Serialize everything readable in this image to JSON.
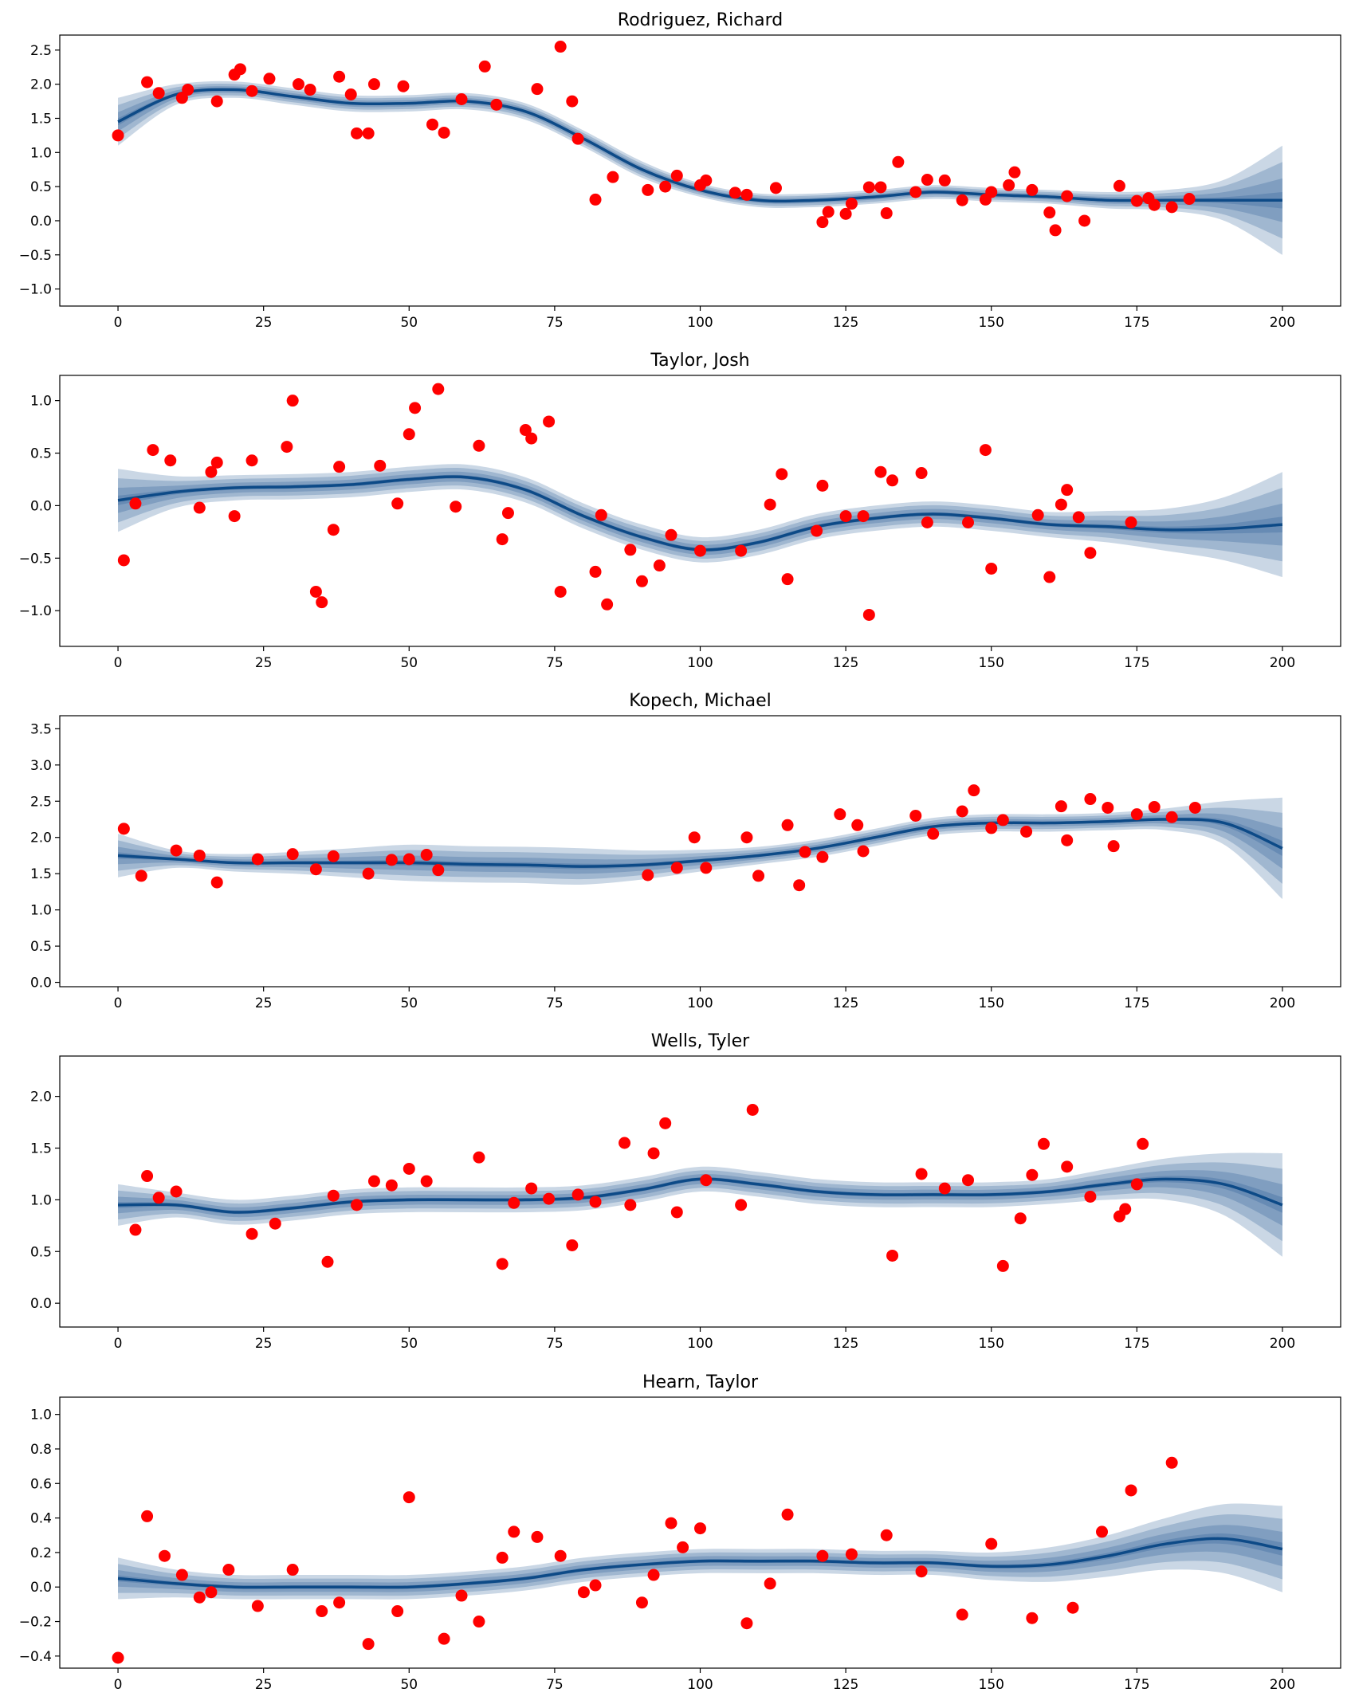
{
  "chart_data": [
    {
      "type": "line",
      "title": "Rodriguez, Richard",
      "xlim": [
        -10,
        210
      ],
      "ylim": [
        -1.25,
        2.72
      ],
      "xticks": [
        0,
        25,
        50,
        75,
        100,
        125,
        150,
        175,
        200
      ],
      "yticks": [
        {
          "value": -1,
          "label": "−1.0"
        },
        {
          "value": -0.5,
          "label": "−0.5"
        },
        {
          "value": 0,
          "label": "0.0"
        },
        0.5,
        {
          "value": 1,
          "label": "1.0"
        },
        1.5,
        {
          "value": 2,
          "label": "2.0"
        },
        2.5
      ],
      "x": [
        0,
        10,
        20,
        30,
        40,
        50,
        60,
        70,
        80,
        90,
        100,
        110,
        120,
        130,
        140,
        150,
        160,
        170,
        180,
        190,
        200
      ],
      "mean": {
        "color": "#0d4a87",
        "values": [
          1.45,
          1.85,
          1.92,
          1.82,
          1.72,
          1.72,
          1.75,
          1.6,
          1.2,
          0.75,
          0.45,
          0.3,
          0.3,
          0.35,
          0.42,
          0.38,
          0.35,
          0.3,
          0.3,
          0.3,
          0.3
        ]
      },
      "spread": [
        0.35,
        0.15,
        0.12,
        0.12,
        0.12,
        0.12,
        0.12,
        0.12,
        0.12,
        0.12,
        0.1,
        0.1,
        0.1,
        0.1,
        0.1,
        0.1,
        0.1,
        0.12,
        0.15,
        0.3,
        0.8
      ],
      "points": {
        "color": "#ff0000",
        "x": [
          0,
          5,
          7,
          11,
          12,
          17,
          20,
          21,
          23,
          26,
          31,
          33,
          38,
          40,
          41,
          43,
          44,
          49,
          54,
          56,
          59,
          63,
          65,
          72,
          76,
          78,
          79,
          82,
          85,
          91,
          94,
          96,
          100,
          101,
          106,
          108,
          113,
          121,
          122,
          125,
          126,
          129,
          131,
          132,
          134,
          137,
          139,
          142,
          145,
          149,
          150,
          153,
          154,
          157,
          160,
          161,
          163,
          166,
          172,
          175,
          177,
          178,
          181,
          184
        ],
        "y": [
          1.25,
          2.03,
          1.87,
          1.8,
          1.92,
          1.75,
          2.14,
          2.22,
          1.9,
          2.08,
          2.0,
          1.92,
          2.11,
          1.85,
          1.28,
          1.28,
          2.0,
          1.97,
          1.41,
          1.29,
          1.78,
          2.26,
          1.7,
          1.93,
          2.55,
          1.75,
          1.2,
          0.31,
          0.64,
          0.45,
          0.5,
          0.66,
          0.52,
          0.59,
          0.41,
          0.38,
          0.48,
          -0.02,
          0.13,
          0.1,
          0.25,
          0.49,
          0.49,
          0.11,
          0.86,
          0.42,
          0.6,
          0.59,
          0.3,
          0.31,
          0.42,
          0.52,
          0.71,
          0.45,
          0.12,
          -0.14,
          0.36,
          0.0,
          0.51,
          0.29,
          0.33,
          0.23,
          0.2,
          0.32
        ]
      }
    },
    {
      "type": "line",
      "title": "Taylor, Josh",
      "xlim": [
        -10,
        210
      ],
      "ylim": [
        -1.34,
        1.24
      ],
      "xticks": [
        0,
        25,
        50,
        75,
        100,
        125,
        150,
        175,
        200
      ],
      "yticks": [
        {
          "value": -1,
          "label": "−1.0"
        },
        {
          "value": -0.5,
          "label": "−0.5"
        },
        {
          "value": 0,
          "label": "0.0"
        },
        0.5,
        {
          "value": 1,
          "label": "1.0"
        }
      ],
      "x": [
        0,
        10,
        20,
        30,
        40,
        50,
        60,
        70,
        80,
        90,
        100,
        110,
        120,
        130,
        140,
        150,
        160,
        170,
        180,
        190,
        200
      ],
      "mean": {
        "color": "#0d4a87",
        "values": [
          0.05,
          0.13,
          0.17,
          0.18,
          0.2,
          0.25,
          0.27,
          0.15,
          -0.1,
          -0.3,
          -0.42,
          -0.35,
          -0.2,
          -0.12,
          -0.08,
          -0.12,
          -0.18,
          -0.2,
          -0.23,
          -0.22,
          -0.18
        ]
      },
      "spread": [
        0.3,
        0.15,
        0.12,
        0.12,
        0.12,
        0.12,
        0.12,
        0.12,
        0.12,
        0.12,
        0.12,
        0.12,
        0.12,
        0.12,
        0.12,
        0.12,
        0.12,
        0.15,
        0.2,
        0.3,
        0.5
      ],
      "points": {
        "color": "#ff0000",
        "x": [
          1,
          3,
          6,
          9,
          14,
          16,
          17,
          20,
          23,
          29,
          30,
          34,
          35,
          37,
          38,
          45,
          48,
          50,
          51,
          55,
          58,
          62,
          66,
          67,
          70,
          71,
          74,
          76,
          82,
          83,
          84,
          88,
          90,
          93,
          95,
          100,
          107,
          112,
          114,
          115,
          120,
          121,
          125,
          128,
          129,
          131,
          133,
          138,
          139,
          146,
          149,
          150,
          158,
          160,
          162,
          163,
          165,
          167,
          174
        ],
        "y": [
          -0.52,
          0.02,
          0.53,
          0.43,
          -0.02,
          0.32,
          0.41,
          -0.1,
          0.43,
          0.56,
          1.0,
          -0.82,
          -0.92,
          -0.23,
          0.37,
          0.38,
          0.02,
          0.68,
          0.93,
          1.11,
          -0.01,
          0.57,
          -0.32,
          -0.07,
          0.72,
          0.64,
          0.8,
          -0.82,
          -0.63,
          -0.09,
          -0.94,
          -0.42,
          -0.72,
          -0.57,
          -0.28,
          -0.43,
          -0.43,
          0.01,
          0.3,
          -0.7,
          -0.24,
          0.19,
          -0.1,
          -0.1,
          -1.04,
          0.32,
          0.24,
          0.31,
          -0.16,
          -0.16,
          0.53,
          -0.6,
          -0.09,
          -0.68,
          0.01,
          0.15,
          -0.11,
          -0.45,
          -0.16
        ]
      }
    },
    {
      "type": "line",
      "title": "Kopech, Michael",
      "xlim": [
        -10,
        210
      ],
      "ylim": [
        -0.06,
        3.68
      ],
      "xticks": [
        0,
        25,
        50,
        75,
        100,
        125,
        150,
        175,
        200
      ],
      "yticks": [
        {
          "value": 0,
          "label": "0.0"
        },
        0.5,
        {
          "value": 1,
          "label": "1.0"
        },
        1.5,
        {
          "value": 2,
          "label": "2.0"
        },
        2.5,
        {
          "value": 3,
          "label": "3.0"
        },
        3.5
      ],
      "x": [
        0,
        10,
        20,
        30,
        40,
        50,
        60,
        70,
        80,
        90,
        100,
        110,
        120,
        130,
        140,
        150,
        160,
        170,
        180,
        190,
        200
      ],
      "mean": {
        "color": "#0d4a87",
        "values": [
          1.75,
          1.7,
          1.65,
          1.65,
          1.65,
          1.65,
          1.63,
          1.62,
          1.6,
          1.62,
          1.68,
          1.75,
          1.85,
          2.0,
          2.15,
          2.2,
          2.2,
          2.22,
          2.25,
          2.2,
          1.85
        ]
      },
      "spread": [
        0.3,
        0.12,
        0.12,
        0.15,
        0.2,
        0.25,
        0.25,
        0.25,
        0.25,
        0.2,
        0.15,
        0.12,
        0.12,
        0.12,
        0.12,
        0.12,
        0.12,
        0.12,
        0.15,
        0.3,
        0.7
      ],
      "points": {
        "color": "#ff0000",
        "x": [
          1,
          4,
          10,
          14,
          17,
          24,
          30,
          34,
          37,
          43,
          47,
          50,
          53,
          55,
          91,
          96,
          99,
          101,
          108,
          110,
          115,
          117,
          118,
          121,
          124,
          127,
          128,
          137,
          140,
          145,
          147,
          150,
          152,
          156,
          162,
          163,
          167,
          170,
          171,
          175,
          178,
          181,
          185
        ],
        "y": [
          2.12,
          1.47,
          1.82,
          1.75,
          1.38,
          1.7,
          1.77,
          1.56,
          1.74,
          1.5,
          1.69,
          1.7,
          1.76,
          1.55,
          1.48,
          1.58,
          2.0,
          1.58,
          2.0,
          1.47,
          2.17,
          1.34,
          1.8,
          1.73,
          2.32,
          2.17,
          1.81,
          2.3,
          2.05,
          2.36,
          2.65,
          2.13,
          2.24,
          2.08,
          2.43,
          1.96,
          2.53,
          2.41,
          1.88,
          2.32,
          2.42,
          2.28,
          2.41
        ]
      }
    },
    {
      "type": "line",
      "title": "Wells, Tyler",
      "xlim": [
        -10,
        210
      ],
      "ylim": [
        -0.23,
        2.39
      ],
      "xticks": [
        0,
        25,
        50,
        75,
        100,
        125,
        150,
        175,
        200
      ],
      "yticks": [
        {
          "value": 0,
          "label": "0.0"
        },
        0.5,
        {
          "value": 1,
          "label": "1.0"
        },
        1.5,
        {
          "value": 2,
          "label": "2.0"
        }
      ],
      "x": [
        0,
        10,
        20,
        30,
        40,
        50,
        60,
        70,
        80,
        90,
        100,
        110,
        120,
        130,
        140,
        150,
        160,
        170,
        180,
        190,
        200
      ],
      "mean": {
        "color": "#0d4a87",
        "values": [
          0.95,
          0.95,
          0.88,
          0.92,
          0.98,
          1.0,
          1.0,
          1.0,
          1.02,
          1.1,
          1.2,
          1.15,
          1.08,
          1.05,
          1.05,
          1.05,
          1.08,
          1.15,
          1.2,
          1.15,
          0.95
        ]
      },
      "spread": [
        0.2,
        0.12,
        0.12,
        0.12,
        0.12,
        0.12,
        0.12,
        0.12,
        0.12,
        0.12,
        0.12,
        0.12,
        0.12,
        0.12,
        0.12,
        0.12,
        0.12,
        0.15,
        0.2,
        0.3,
        0.5
      ],
      "points": {
        "color": "#ff0000",
        "x": [
          3,
          5,
          7,
          10,
          23,
          27,
          36,
          37,
          41,
          44,
          47,
          50,
          53,
          62,
          66,
          68,
          71,
          74,
          78,
          79,
          82,
          87,
          88,
          92,
          94,
          96,
          101,
          107,
          109,
          133,
          138,
          142,
          146,
          152,
          155,
          157,
          159,
          163,
          167,
          172,
          173,
          175,
          176
        ],
        "y": [
          0.71,
          1.23,
          1.02,
          1.08,
          0.67,
          0.77,
          0.4,
          1.04,
          0.95,
          1.18,
          1.14,
          1.3,
          1.18,
          1.41,
          0.38,
          0.97,
          1.11,
          1.01,
          0.56,
          1.05,
          0.98,
          1.55,
          0.95,
          1.45,
          1.74,
          0.88,
          1.19,
          0.95,
          1.87,
          0.46,
          1.25,
          1.11,
          1.19,
          0.36,
          0.82,
          1.24,
          1.54,
          1.32,
          1.03,
          0.84,
          0.91,
          1.15,
          1.54
        ]
      }
    },
    {
      "type": "line",
      "title": "Hearn, Taylor",
      "xlim": [
        -10,
        210
      ],
      "ylim": [
        -0.47,
        1.1
      ],
      "xticks": [
        0,
        25,
        50,
        75,
        100,
        125,
        150,
        175,
        200
      ],
      "yticks": [
        {
          "value": -0.4,
          "label": "−0.4"
        },
        {
          "value": -0.2,
          "label": "−0.2"
        },
        {
          "value": 0,
          "label": "0.0"
        },
        0.2,
        0.4,
        0.6,
        0.8,
        {
          "value": 1,
          "label": "1.0"
        }
      ],
      "x": [
        0,
        10,
        20,
        30,
        40,
        50,
        60,
        70,
        80,
        90,
        100,
        110,
        120,
        130,
        140,
        150,
        160,
        170,
        180,
        190,
        200
      ],
      "mean": {
        "color": "#0d4a87",
        "values": [
          0.05,
          0.02,
          0.0,
          0.0,
          0.0,
          0.0,
          0.02,
          0.05,
          0.1,
          0.13,
          0.15,
          0.15,
          0.15,
          0.14,
          0.14,
          0.12,
          0.13,
          0.18,
          0.25,
          0.28,
          0.22
        ]
      },
      "spread": [
        0.12,
        0.08,
        0.07,
        0.07,
        0.07,
        0.07,
        0.07,
        0.07,
        0.07,
        0.07,
        0.07,
        0.07,
        0.07,
        0.07,
        0.07,
        0.08,
        0.1,
        0.12,
        0.15,
        0.2,
        0.25
      ],
      "points": {
        "color": "#ff0000",
        "x": [
          0,
          5,
          8,
          11,
          14,
          16,
          19,
          24,
          30,
          35,
          38,
          43,
          48,
          50,
          56,
          59,
          62,
          66,
          68,
          72,
          76,
          80,
          82,
          90,
          92,
          95,
          97,
          100,
          108,
          112,
          115,
          121,
          126,
          132,
          138,
          145,
          150,
          157,
          164,
          169,
          174,
          181
        ],
        "y": [
          -0.41,
          0.41,
          0.18,
          0.07,
          -0.06,
          -0.03,
          0.1,
          -0.11,
          0.1,
          -0.14,
          -0.09,
          -0.33,
          -0.14,
          0.52,
          -0.3,
          -0.05,
          -0.2,
          0.17,
          0.32,
          0.29,
          0.18,
          -0.03,
          0.01,
          -0.09,
          0.07,
          0.37,
          0.23,
          0.34,
          -0.21,
          0.02,
          0.42,
          0.18,
          0.19,
          0.3,
          0.09,
          -0.16,
          0.25,
          -0.18,
          -0.12,
          0.32,
          0.56,
          0.72
        ]
      }
    }
  ]
}
